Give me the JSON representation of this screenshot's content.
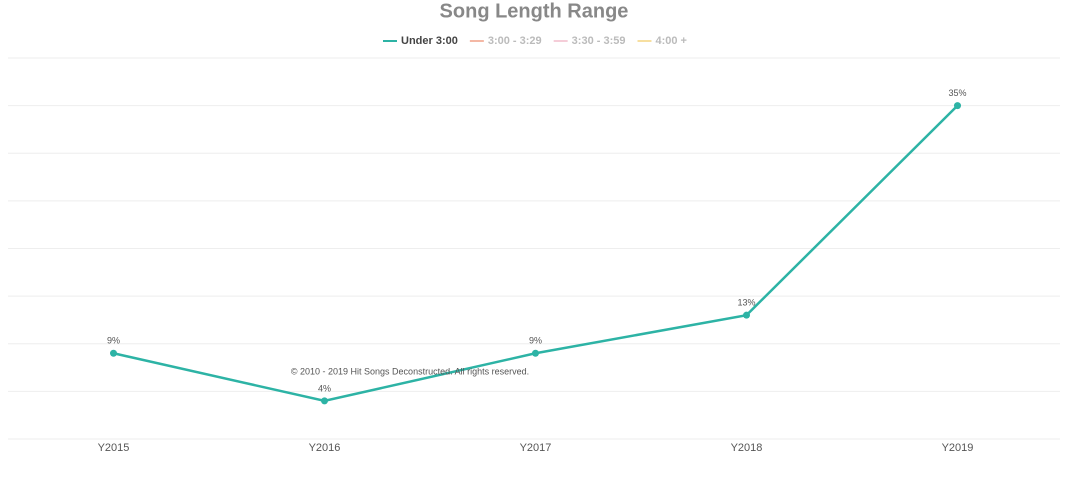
{
  "chart_data": {
    "type": "line",
    "title": "Song Length Range",
    "categories": [
      "Y2015",
      "Y2016",
      "Y2017",
      "Y2018",
      "Y2019"
    ],
    "series": [
      {
        "name": "Under 3:00",
        "color": "#2db3a5",
        "values": [
          9,
          4,
          9,
          13,
          35
        ],
        "value_labels": [
          "9%",
          "4%",
          "9%",
          "13%",
          "35%"
        ]
      },
      {
        "name": "3:00 - 3:29",
        "color": "#f4b8a5",
        "hidden": true
      },
      {
        "name": "3:30 - 3:59",
        "color": "#f5cdd8",
        "hidden": true
      },
      {
        "name": "4:00 +",
        "color": "#f7dfa0",
        "hidden": true
      }
    ],
    "ylim": [
      0,
      40
    ],
    "yticks": [
      0,
      5,
      10,
      15,
      20,
      25,
      30,
      35,
      40
    ],
    "grid": true,
    "credit": "© 2010 - 2019 Hit Songs Deconstructed. All rights reserved."
  }
}
